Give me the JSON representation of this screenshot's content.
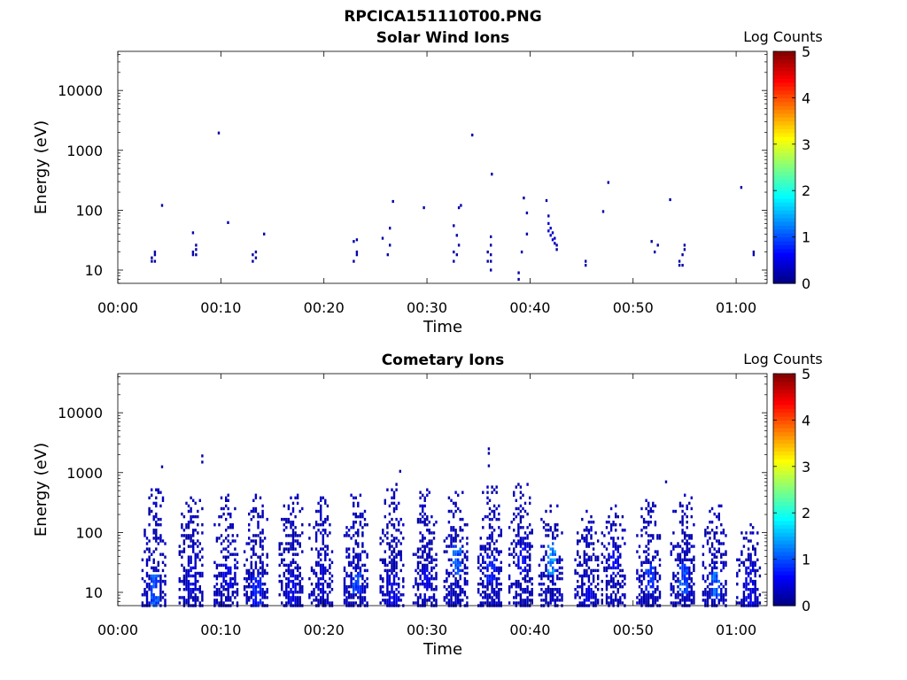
{
  "figure": {
    "title": "RPCICA151110T00.PNG"
  },
  "colormap": {
    "name": "jet",
    "stops": [
      "#00007f",
      "#0000ff",
      "#007fff",
      "#00ffff",
      "#7fff7f",
      "#ffff00",
      "#ff7f00",
      "#ff0000",
      "#7f0000"
    ]
  },
  "chart_data": [
    {
      "type": "heatmap",
      "title": "Solar Wind Ions",
      "xlabel": "Time",
      "ylabel": "Energy (eV)",
      "x_ticks": [
        "00:00",
        "00:10",
        "00:20",
        "00:30",
        "00:40",
        "00:50",
        "01:00"
      ],
      "x_tick_minutes": [
        0,
        10,
        20,
        30,
        40,
        50,
        60
      ],
      "xlim_minutes": [
        0,
        63
      ],
      "y_scale": "log",
      "y_ticks": [
        "10",
        "100",
        "1000",
        "10000"
      ],
      "y_tick_values": [
        10,
        100,
        1000,
        10000
      ],
      "ylim": [
        6,
        45000
      ],
      "colorbar": {
        "label": "Log Counts",
        "ticks": [
          "0",
          "1",
          "2",
          "3",
          "4",
          "5"
        ],
        "range": [
          0,
          5
        ]
      },
      "pixels": [
        [
          3.3,
          14,
          0.2
        ],
        [
          3.3,
          16,
          0.2
        ],
        [
          3.6,
          18,
          0.2
        ],
        [
          3.6,
          20,
          0.2
        ],
        [
          3.6,
          14,
          0.2
        ],
        [
          4.3,
          120,
          0.2
        ],
        [
          7.3,
          18,
          0.2
        ],
        [
          7.3,
          20,
          0.2
        ],
        [
          7.3,
          42,
          0.2
        ],
        [
          7.6,
          22,
          0.2
        ],
        [
          7.6,
          26,
          0.2
        ],
        [
          7.6,
          18,
          0.2
        ],
        [
          9.8,
          1950,
          0.2
        ],
        [
          10.7,
          62,
          0.3
        ],
        [
          13.1,
          14,
          0.2
        ],
        [
          13.1,
          18,
          0.2
        ],
        [
          13.4,
          20,
          0.2
        ],
        [
          13.4,
          16,
          0.2
        ],
        [
          14.2,
          40,
          0.2
        ],
        [
          22.9,
          14,
          0.2
        ],
        [
          22.9,
          30,
          0.2
        ],
        [
          23.2,
          20,
          0.2
        ],
        [
          23.2,
          32,
          0.2
        ],
        [
          23.2,
          18,
          0.2
        ],
        [
          25.7,
          34,
          0.2
        ],
        [
          26.2,
          18,
          0.2
        ],
        [
          26.4,
          26,
          0.2
        ],
        [
          26.4,
          50,
          0.2
        ],
        [
          26.7,
          140,
          0.2
        ],
        [
          29.7,
          110,
          0.2
        ],
        [
          32.6,
          14,
          0.2
        ],
        [
          32.6,
          20,
          0.2
        ],
        [
          32.6,
          55,
          0.2
        ],
        [
          32.9,
          18,
          0.2
        ],
        [
          32.9,
          38,
          0.2
        ],
        [
          33.1,
          26,
          0.2
        ],
        [
          33.1,
          110,
          0.2
        ],
        [
          33.3,
          120,
          0.2
        ],
        [
          34.4,
          1800,
          0.2
        ],
        [
          35.9,
          14,
          0.2
        ],
        [
          35.9,
          20,
          0.2
        ],
        [
          36.2,
          10,
          0.2
        ],
        [
          36.2,
          14,
          0.2
        ],
        [
          36.2,
          18,
          0.2
        ],
        [
          36.2,
          26,
          0.2
        ],
        [
          36.2,
          36,
          0.2
        ],
        [
          36.3,
          400,
          0.2
        ],
        [
          38.9,
          7,
          0.2
        ],
        [
          38.9,
          9,
          0.2
        ],
        [
          39.2,
          20,
          0.2
        ],
        [
          39.4,
          160,
          0.2
        ],
        [
          39.7,
          40,
          0.2
        ],
        [
          39.7,
          90,
          0.2
        ],
        [
          41.6,
          145,
          0.2
        ],
        [
          41.8,
          80,
          0.3
        ],
        [
          41.8,
          60,
          0.4
        ],
        [
          41.8,
          45,
          0.4
        ],
        [
          42.0,
          50,
          0.4
        ],
        [
          42.0,
          38,
          0.4
        ],
        [
          42.2,
          42,
          0.3
        ],
        [
          42.2,
          32,
          0.4
        ],
        [
          42.4,
          34,
          0.3
        ],
        [
          42.4,
          28,
          0.3
        ],
        [
          42.6,
          26,
          0.3
        ],
        [
          42.6,
          22,
          0.2
        ],
        [
          45.4,
          12,
          0.2
        ],
        [
          45.4,
          14,
          0.2
        ],
        [
          47.1,
          95,
          0.2
        ],
        [
          47.6,
          290,
          0.2
        ],
        [
          51.8,
          30,
          0.2
        ],
        [
          52.1,
          20,
          0.2
        ],
        [
          52.4,
          26,
          0.2
        ],
        [
          54.5,
          12,
          0.2
        ],
        [
          54.5,
          14,
          0.2
        ],
        [
          54.8,
          18,
          0.2
        ],
        [
          54.8,
          12,
          0.2
        ],
        [
          55.0,
          22,
          0.2
        ],
        [
          55.0,
          26,
          0.2
        ],
        [
          53.6,
          150,
          0.2
        ],
        [
          60.5,
          240,
          0.2
        ],
        [
          61.7,
          18,
          0.2
        ],
        [
          61.7,
          20,
          0.2
        ]
      ]
    },
    {
      "type": "heatmap",
      "title": "Cometary Ions",
      "xlabel": "Time",
      "ylabel": "Energy (eV)",
      "x_ticks": [
        "00:00",
        "00:10",
        "00:20",
        "00:30",
        "00:40",
        "00:50",
        "01:00"
      ],
      "x_tick_minutes": [
        0,
        10,
        20,
        30,
        40,
        50,
        60
      ],
      "xlim_minutes": [
        0,
        63
      ],
      "y_scale": "log",
      "y_ticks": [
        "10",
        "100",
        "1000",
        "10000"
      ],
      "y_tick_values": [
        10,
        100,
        1000,
        10000
      ],
      "ylim": [
        6,
        45000
      ],
      "colorbar": {
        "label": "Log Counts",
        "ticks": [
          "0",
          "1",
          "2",
          "3",
          "4",
          "5"
        ],
        "range": [
          0,
          5
        ]
      },
      "bursts": [
        {
          "t": 3.6,
          "top": 550,
          "peak": 1.2,
          "hot_lo": 6,
          "hot_hi": 22
        },
        {
          "t": 7.2,
          "top": 450,
          "peak": 0.5,
          "hot_lo": 10,
          "hot_hi": 30
        },
        {
          "t": 10.6,
          "top": 430,
          "peak": 0.6,
          "hot_lo": 12,
          "hot_hi": 30
        },
        {
          "t": 13.5,
          "top": 420,
          "peak": 0.9,
          "hot_lo": 6,
          "hot_hi": 20
        },
        {
          "t": 16.9,
          "top": 450,
          "peak": 0.6,
          "hot_lo": 6,
          "hot_hi": 20
        },
        {
          "t": 19.8,
          "top": 380,
          "peak": 0.5,
          "hot_lo": 10,
          "hot_hi": 30
        },
        {
          "t": 23.2,
          "top": 420,
          "peak": 1.1,
          "hot_lo": 10,
          "hot_hi": 22
        },
        {
          "t": 26.7,
          "top": 650,
          "peak": 0.6,
          "hot_lo": 6,
          "hot_hi": 20
        },
        {
          "t": 29.9,
          "top": 520,
          "peak": 0.6,
          "hot_lo": 8,
          "hot_hi": 25
        },
        {
          "t": 32.9,
          "top": 500,
          "peak": 1.3,
          "hot_lo": 20,
          "hot_hi": 60
        },
        {
          "t": 36.2,
          "top": 600,
          "peak": 0.9,
          "hot_lo": 15,
          "hot_hi": 40
        },
        {
          "t": 39.2,
          "top": 650,
          "peak": 0.7,
          "hot_lo": 20,
          "hot_hi": 60
        },
        {
          "t": 42.1,
          "top": 300,
          "peak": 1.6,
          "hot_lo": 20,
          "hot_hi": 70
        },
        {
          "t": 45.6,
          "top": 250,
          "peak": 0.6,
          "hot_lo": 6,
          "hot_hi": 12
        },
        {
          "t": 48.2,
          "top": 300,
          "peak": 0.7,
          "hot_lo": 20,
          "hot_hi": 50
        },
        {
          "t": 51.6,
          "top": 350,
          "peak": 1.0,
          "hot_lo": 10,
          "hot_hi": 30
        },
        {
          "t": 54.9,
          "top": 450,
          "peak": 1.2,
          "hot_lo": 10,
          "hot_hi": 30
        },
        {
          "t": 58.0,
          "top": 280,
          "peak": 1.3,
          "hot_lo": 8,
          "hot_hi": 22
        },
        {
          "t": 61.3,
          "top": 150,
          "peak": 0.6,
          "hot_lo": 6,
          "hot_hi": 30
        }
      ],
      "isolated": [
        [
          4.3,
          1250,
          0.2
        ],
        [
          8.2,
          1900,
          0.2
        ],
        [
          8.2,
          1500,
          0.2
        ],
        [
          27.4,
          1050,
          0.2
        ],
        [
          36.0,
          2500,
          0.2
        ],
        [
          36.0,
          2100,
          0.2
        ],
        [
          36.0,
          1300,
          0.2
        ],
        [
          53.2,
          700,
          0.2
        ]
      ]
    }
  ]
}
